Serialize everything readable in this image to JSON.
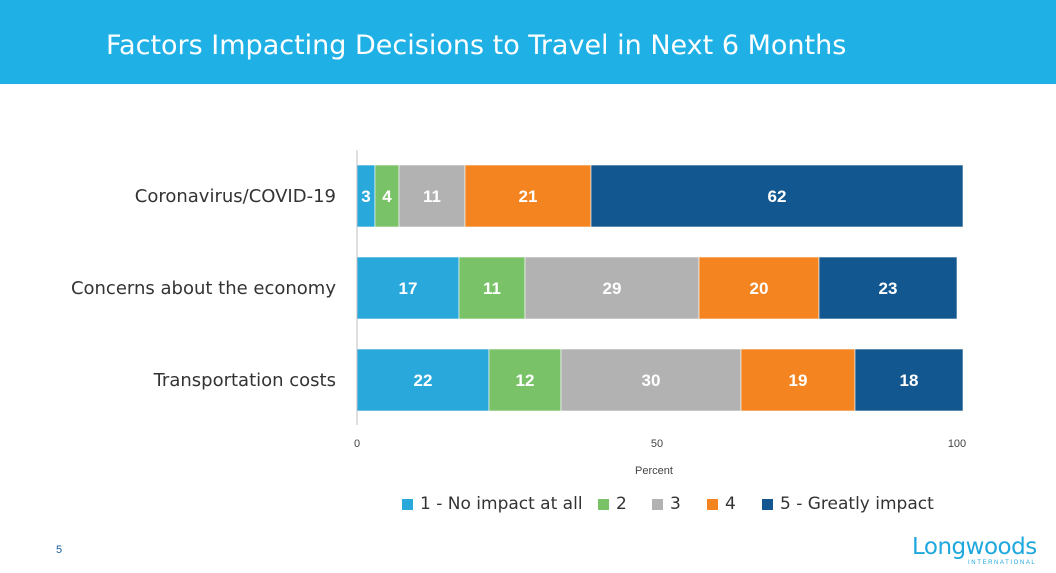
{
  "header": {
    "title": "Factors Impacting Decisions to Travel in Next 6 Months"
  },
  "chart_data": {
    "type": "bar",
    "orientation": "horizontal",
    "stacked": true,
    "categories": [
      "Coronavirus/COVID-19",
      "Concerns about the economy",
      "Transportation costs"
    ],
    "series": [
      {
        "name": "1 - No impact at all",
        "color": "#29a8dc",
        "values": [
          3,
          17,
          22
        ]
      },
      {
        "name": "2",
        "color": "#79c267",
        "values": [
          4,
          11,
          12
        ]
      },
      {
        "name": "3",
        "color": "#b2b2b2",
        "values": [
          11,
          29,
          30
        ]
      },
      {
        "name": "4",
        "color": "#f4841f",
        "values": [
          21,
          20,
          19
        ]
      },
      {
        "name": "5 - Greatly impact",
        "color": "#12578f",
        "values": [
          62,
          23,
          18
        ]
      }
    ],
    "xlabel": "Percent",
    "xlim": [
      0,
      100
    ],
    "xticks": [
      0,
      50,
      100
    ],
    "grid": false,
    "legend": "bottom"
  },
  "footer": {
    "page_number": "5",
    "logo_text": "Longwoods",
    "logo_sub": "INTERNATIONAL"
  }
}
